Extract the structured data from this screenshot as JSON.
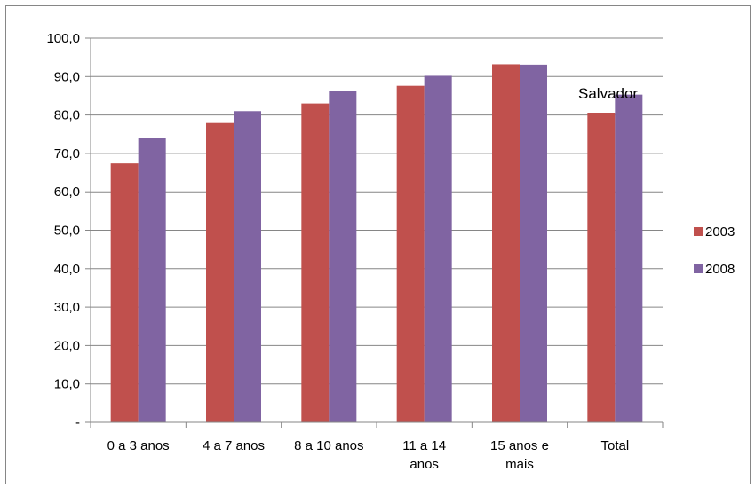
{
  "chart_data": {
    "type": "bar",
    "categories": [
      [
        "0 a 3 anos"
      ],
      [
        "4 a 7 anos"
      ],
      [
        "8 a 10 anos"
      ],
      [
        "11 a 14",
        "anos"
      ],
      [
        "15 anos e",
        "mais"
      ],
      [
        "Total"
      ]
    ],
    "series": [
      {
        "name": "2003",
        "color": "#c0504d",
        "values": [
          67.4,
          77.9,
          83.0,
          87.6,
          93.2,
          80.6
        ]
      },
      {
        "name": "2008",
        "color": "#8064a2",
        "values": [
          74.0,
          81.0,
          86.2,
          90.2,
          93.1,
          85.3
        ]
      }
    ],
    "ylim": [
      0,
      100
    ],
    "yticks": [
      {
        "value": 0,
        "label": "-"
      },
      {
        "value": 10,
        "label": "10,0"
      },
      {
        "value": 20,
        "label": "20,0"
      },
      {
        "value": 30,
        "label": "30,0"
      },
      {
        "value": 40,
        "label": "40,0"
      },
      {
        "value": 50,
        "label": "50,0"
      },
      {
        "value": 60,
        "label": "60,0"
      },
      {
        "value": 70,
        "label": "70,0"
      },
      {
        "value": 80,
        "label": "80,0"
      },
      {
        "value": 90,
        "label": "90,0"
      },
      {
        "value": 100,
        "label": "100,0"
      }
    ],
    "grid": true,
    "legend_position": "right",
    "annotation": "Salvador",
    "title": "",
    "xlabel": "",
    "ylabel": ""
  }
}
